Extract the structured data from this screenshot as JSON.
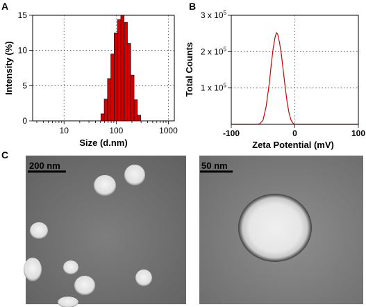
{
  "panels": {
    "a": "A",
    "b": "B",
    "c": "C"
  },
  "chart_data": [
    {
      "type": "bar",
      "panel": "A",
      "xlabel": "Size (d.nm)",
      "ylabel": "Intensity (%)",
      "x_scale": "log",
      "xlim": [
        2.5,
        1300
      ],
      "ylim": [
        0,
        15
      ],
      "x_ticks": [
        {
          "value": 10,
          "label": "10"
        },
        {
          "value": 100,
          "label": "100"
        },
        {
          "value": 1000,
          "label": "1000"
        }
      ],
      "y_ticks": [
        {
          "value": 0,
          "label": "0"
        },
        {
          "value": 5,
          "label": "5"
        },
        {
          "value": 10,
          "label": "10"
        },
        {
          "value": 15,
          "label": "15"
        }
      ],
      "grid": true,
      "bar_color": "#d40000",
      "bins": [
        {
          "from": 50.8,
          "to": 58.8,
          "value": 1.0
        },
        {
          "from": 58.8,
          "to": 68.1,
          "value": 3.1
        },
        {
          "from": 68.1,
          "to": 78.8,
          "value": 6.0
        },
        {
          "from": 78.8,
          "to": 91.3,
          "value": 9.5
        },
        {
          "from": 91.3,
          "to": 105.7,
          "value": 12.5
        },
        {
          "from": 105.7,
          "to": 122.4,
          "value": 14.4
        },
        {
          "from": 122.4,
          "to": 141.8,
          "value": 15.0
        },
        {
          "from": 141.8,
          "to": 164.2,
          "value": 14.0
        },
        {
          "from": 164.2,
          "to": 190.1,
          "value": 11.0
        },
        {
          "from": 190.1,
          "to": 220.2,
          "value": 6.5
        },
        {
          "from": 220.2,
          "to": 255.0,
          "value": 3.0
        },
        {
          "from": 255.0,
          "to": 295.3,
          "value": 0.8
        }
      ]
    },
    {
      "type": "line",
      "panel": "B",
      "xlabel": "Zeta Potential (mV)",
      "ylabel": "Total Counts",
      "xlim": [
        -100,
        100
      ],
      "ylim": [
        0,
        300000
      ],
      "x_ticks": [
        {
          "value": -100,
          "label": "-100"
        },
        {
          "value": 0,
          "label": "0"
        },
        {
          "value": 100,
          "label": "100"
        }
      ],
      "y_ticks": [
        {
          "value": 100000,
          "base": "1 x 10",
          "exp": "5"
        },
        {
          "value": 200000,
          "base": "2 x 10",
          "exp": "5"
        },
        {
          "value": 300000,
          "base": "3 x 10",
          "exp": "5"
        }
      ],
      "grid": true,
      "line_color": "#d40000",
      "x": [
        -100,
        -90,
        -80,
        -70,
        -60,
        -55,
        -50,
        -45,
        -40,
        -37,
        -34,
        -31,
        -29,
        -27,
        -24,
        -21,
        -18,
        -15,
        -12,
        -9,
        -6,
        -3,
        0,
        5,
        10,
        20,
        40,
        60,
        80,
        100
      ],
      "y": [
        0,
        0,
        0,
        0,
        0,
        1500,
        12000,
        50000,
        115000,
        165000,
        210000,
        240000,
        252000,
        248000,
        225000,
        190000,
        145000,
        100000,
        60000,
        30000,
        12000,
        3000,
        500,
        0,
        0,
        0,
        0,
        0,
        0,
        0
      ]
    }
  ],
  "tem": {
    "left": {
      "scale_label": "200 nm"
    },
    "right": {
      "scale_label": "50 nm"
    }
  }
}
